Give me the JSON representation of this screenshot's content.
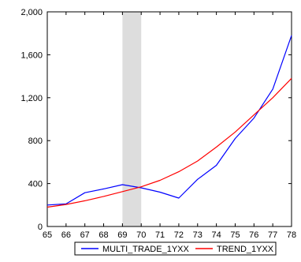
{
  "chart_data": {
    "type": "line",
    "x": [
      "65",
      "66",
      "67",
      "68",
      "69",
      "70",
      "71",
      "72",
      "73",
      "74",
      "75",
      "76",
      "77",
      "78"
    ],
    "ylim": [
      0,
      2000
    ],
    "y_ticks": [
      "0",
      "400",
      "800",
      "1,200",
      "1,600",
      "2,000"
    ],
    "y_tick_values": [
      0,
      400,
      800,
      1200,
      1600,
      2000
    ],
    "grid": false,
    "shaded_region": {
      "from": "69",
      "to": "70",
      "color": "#dddddd"
    },
    "legend_position": "bottom",
    "series": [
      {
        "name": "MULTI_TRADE_1YXX",
        "color": "#0000ff",
        "values": [
          200,
          210,
          315,
          350,
          390,
          360,
          320,
          265,
          440,
          570,
          820,
          1010,
          1280,
          1780
        ]
      },
      {
        "name": "TREND_1YXX",
        "color": "#ff0000",
        "values": [
          180,
          205,
          240,
          280,
          325,
          370,
          430,
          510,
          610,
          740,
          880,
          1040,
          1200,
          1380
        ]
      }
    ]
  }
}
